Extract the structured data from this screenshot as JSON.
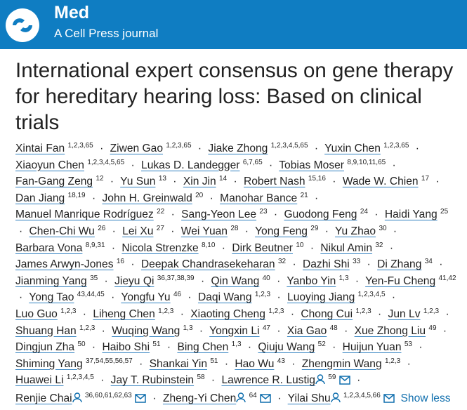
{
  "header": {
    "journal": "Med",
    "subtitle": "A Cell Press journal"
  },
  "title": "International expert consensus on gene therapy for hereditary hearing loss: Based on clinical trials",
  "separator": "·",
  "authors": [
    {
      "name": "Xintai Fan",
      "sup": "1,2,3,65"
    },
    {
      "name": "Ziwen Gao",
      "sup": "1,2,3,65"
    },
    {
      "name": "Jiake Zhong",
      "sup": "1,2,3,4,5,65"
    },
    {
      "name": "Yuxin Chen",
      "sup": "1,2,3,65"
    },
    {
      "name": "Xiaoyun Chen",
      "sup": "1,2,3,4,5,65"
    },
    {
      "name": "Lukas D. Landegger",
      "sup": "6,7,65"
    },
    {
      "name": "Tobias Moser",
      "sup": "8,9,10,11,65"
    },
    {
      "name": "Fan-Gang Zeng",
      "sup": "12"
    },
    {
      "name": "Yu Sun",
      "sup": "13"
    },
    {
      "name": "Xin Jin",
      "sup": "14"
    },
    {
      "name": "Robert Nash",
      "sup": "15,16"
    },
    {
      "name": "Wade W. Chien",
      "sup": "17"
    },
    {
      "name": "Dan Jiang",
      "sup": "18,19"
    },
    {
      "name": "John H. Greinwald",
      "sup": "20"
    },
    {
      "name": "Manohar Bance",
      "sup": "21"
    },
    {
      "name": "Manuel Manrique Rodríguez",
      "sup": "22"
    },
    {
      "name": "Sang-Yeon Lee",
      "sup": "23"
    },
    {
      "name": "Guodong Feng",
      "sup": "24"
    },
    {
      "name": "Haidi Yang",
      "sup": "25"
    },
    {
      "name": "Chen-Chi Wu",
      "sup": "26"
    },
    {
      "name": "Lei Xu",
      "sup": "27"
    },
    {
      "name": "Wei Yuan",
      "sup": "28"
    },
    {
      "name": "Yong Feng",
      "sup": "29"
    },
    {
      "name": "Yu Zhao",
      "sup": "30"
    },
    {
      "name": "Barbara Vona",
      "sup": "8,9,31"
    },
    {
      "name": "Nicola Strenzke",
      "sup": "8,10"
    },
    {
      "name": "Dirk Beutner",
      "sup": "10"
    },
    {
      "name": "Nikul Amin",
      "sup": "32"
    },
    {
      "name": "James Arwyn-Jones",
      "sup": "16"
    },
    {
      "name": "Deepak Chandrasekeharan",
      "sup": "32"
    },
    {
      "name": "Dazhi Shi",
      "sup": "33"
    },
    {
      "name": "Di Zhang",
      "sup": "34"
    },
    {
      "name": "Jianming Yang",
      "sup": "35"
    },
    {
      "name": "Jieyu Qi",
      "sup": "36,37,38,39"
    },
    {
      "name": "Qin Wang",
      "sup": "40"
    },
    {
      "name": "Yanbo Yin",
      "sup": "1,3"
    },
    {
      "name": "Yen-Fu Cheng",
      "sup": "41,42"
    },
    {
      "name": "Yong Tao",
      "sup": "43,44,45"
    },
    {
      "name": "Yongfu Yu",
      "sup": "46"
    },
    {
      "name": "Daqi Wang",
      "sup": "1,2,3"
    },
    {
      "name": "Luoying Jiang",
      "sup": "1,2,3,4,5"
    },
    {
      "name": "Luo Guo",
      "sup": "1,2,3"
    },
    {
      "name": "Liheng Chen",
      "sup": "1,2,3"
    },
    {
      "name": "Xiaoting Cheng",
      "sup": "1,2,3"
    },
    {
      "name": "Chong Cui",
      "sup": "1,2,3"
    },
    {
      "name": "Jun Lv",
      "sup": "1,2,3"
    },
    {
      "name": "Shuang Han",
      "sup": "1,2,3"
    },
    {
      "name": "Wuqing Wang",
      "sup": "1,3"
    },
    {
      "name": "Yongxin Li",
      "sup": "47"
    },
    {
      "name": "Xia Gao",
      "sup": "48"
    },
    {
      "name": "Xue Zhong Liu",
      "sup": "49"
    },
    {
      "name": "Dingjun Zha",
      "sup": "50"
    },
    {
      "name": "Haibo Shi",
      "sup": "51"
    },
    {
      "name": "Bing Chen",
      "sup": "1,3"
    },
    {
      "name": "Qiuju Wang",
      "sup": "52"
    },
    {
      "name": "Huijun Yuan",
      "sup": "53"
    },
    {
      "name": "Shiming Yang",
      "sup": "37,54,55,56,57"
    },
    {
      "name": "Shankai Yin",
      "sup": "51"
    },
    {
      "name": "Hao Wu",
      "sup": "43"
    },
    {
      "name": "Zhengmin Wang",
      "sup": "1,2,3"
    },
    {
      "name": "Huawei Li",
      "sup": "1,2,3,4,5"
    },
    {
      "name": "Jay T. Rubinstein",
      "sup": "58"
    },
    {
      "name": "Lawrence R. Lustig",
      "sup": "59",
      "corresponding": true
    },
    {
      "name": "Renjie Chai",
      "sup": "36,60,61,62,63",
      "corresponding": true
    },
    {
      "name": "Zheng-Yi Chen",
      "sup": "64",
      "corresponding": true
    },
    {
      "name": "Yilai Shu",
      "sup": "1,2,3,4,5,66",
      "corresponding": true
    }
  ],
  "toggle": "Show less"
}
